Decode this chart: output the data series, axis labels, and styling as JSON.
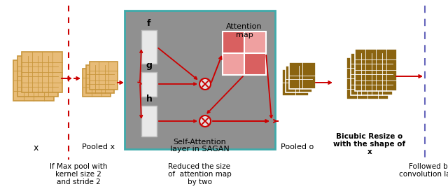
{
  "bg_color": "#ffffff",
  "tan_color": "#E8BC78",
  "tan_edge": "#C8963C",
  "tan_inner": "#D4A060",
  "brown_color": "#8B6410",
  "brown_edge": "#FFFFFF",
  "red_color": "#CC0000",
  "pink_dark": "#D96060",
  "pink_light": "#EFA0A0",
  "gray_box_color": "#909090",
  "gray_box_edge": "#40AAAA",
  "white_rect": "#E8E8E8",
  "white_rect_edge": "#BBBBBB",
  "dashed_blue": "#6666BB",
  "text_color": "#000000",
  "labels": {
    "x_label": "x",
    "pooled_x": "Pooled x",
    "pooled_o": "Pooled o",
    "bicubic_line1": "Bicubic Resize o",
    "bicubic_line2": "with the shape of",
    "bicubic_line3": "x",
    "sagan_line1": "Self-Attention",
    "sagan_line2": "layer in SAGAN",
    "attention_line1": "Attention",
    "attention_line2": "map",
    "f_label": "f",
    "g_label": "g",
    "h_label": "h",
    "note1_line1": "If Max pool with",
    "note1_line2": "kernel size 2",
    "note1_line3": "and stride 2",
    "note2_line1": "Reduced the size",
    "note2_line2": "of  attention map",
    "note2_line3": "by two",
    "note3_line1": "Followed by",
    "note3_line2": "convolution layer"
  },
  "figsize": [
    6.4,
    2.8
  ],
  "dpi": 100
}
